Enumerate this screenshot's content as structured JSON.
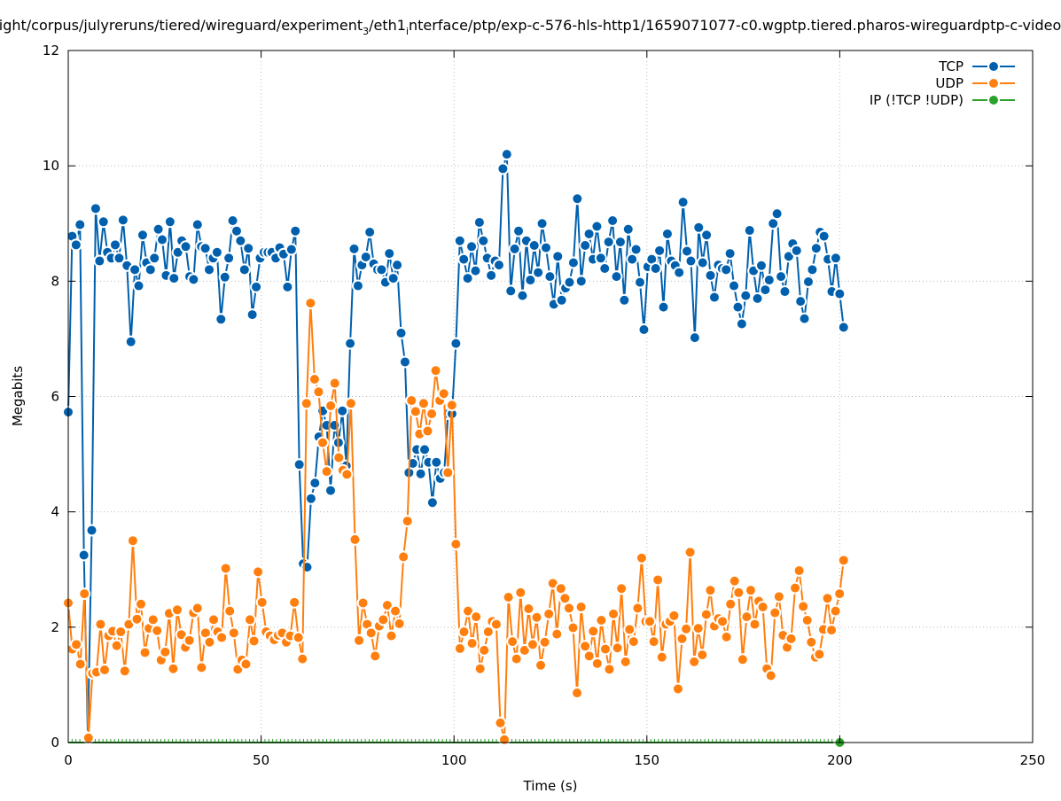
{
  "chart_data": {
    "type": "line",
    "title_parts": [
      "ight/corpus/julyreruns/tiered/wireguard/experiment",
      "3",
      "/eth1",
      "i",
      "nterface/ptp/exp-c-576-hls-http1/1659071077-c0.wgptp.tiered.pharos-wireguardptp-c-video"
    ],
    "xlabel": "Time (s)",
    "ylabel": "Megabits",
    "xlim": [
      0,
      250
    ],
    "ylim": [
      0,
      12
    ],
    "xticks": [
      "0",
      "50",
      "100",
      "150",
      "200",
      "250"
    ],
    "yticks": [
      "0",
      "2",
      "4",
      "6",
      "8",
      "10",
      "12"
    ],
    "grid": true,
    "legend_position": "top-right",
    "x_range_of_samples": [
      0,
      201
    ],
    "series": [
      {
        "name": "TCP",
        "color": "#0060ad",
        "values": [
          5.73,
          8.78,
          8.63,
          8.98,
          3.25,
          0.1,
          3.68,
          9.26,
          8.35,
          9.03,
          8.5,
          8.4,
          8.63,
          8.4,
          9.06,
          8.27,
          6.95,
          8.2,
          7.92,
          8.8,
          8.32,
          8.2,
          8.4,
          8.9,
          8.72,
          8.1,
          9.03,
          8.05,
          8.5,
          8.7,
          8.6,
          8.08,
          8.03,
          8.98,
          8.6,
          8.57,
          8.2,
          8.4,
          8.5,
          7.34,
          8.07,
          8.4,
          9.05,
          8.87,
          8.7,
          8.2,
          8.57,
          7.42,
          7.9,
          8.4,
          8.5,
          8.5,
          8.5,
          8.4,
          8.58,
          8.47,
          7.9,
          8.55,
          8.87,
          4.82,
          3.1,
          3.04,
          4.23,
          4.5,
          5.3,
          5.75,
          5.5,
          4.37,
          5.5,
          5.2,
          5.75,
          4.8,
          6.92,
          8.56,
          7.92,
          8.28,
          8.42,
          8.85,
          8.3,
          8.2,
          8.2,
          7.98,
          8.48,
          8.05,
          8.28,
          7.1,
          6.6,
          4.68,
          4.84,
          5.08,
          4.66,
          5.08,
          4.86,
          4.16,
          4.86,
          4.58,
          4.68,
          5.7,
          5.7,
          6.92,
          8.7,
          8.38,
          8.05,
          8.6,
          8.18,
          9.02,
          8.7,
          8.4,
          8.1,
          8.35,
          8.28,
          9.95,
          10.2,
          7.83,
          8.56,
          8.87,
          7.75,
          8.7,
          8.02,
          8.62,
          8.15,
          9.0,
          8.58,
          8.08,
          7.6,
          8.43,
          7.67,
          7.88,
          7.98,
          8.32,
          9.43,
          8.0,
          8.62,
          8.82,
          8.38,
          8.95,
          8.4,
          8.22,
          8.68,
          9.05,
          8.08,
          8.68,
          7.67,
          8.9,
          8.38,
          8.55,
          7.98,
          7.16,
          8.25,
          8.38,
          8.22,
          8.53,
          7.55,
          8.82,
          8.35,
          8.27,
          8.15,
          9.37,
          8.52,
          8.35,
          7.02,
          8.93,
          8.32,
          8.8,
          8.1,
          7.72,
          8.28,
          8.22,
          8.2,
          8.48,
          7.92,
          7.55,
          7.26,
          7.75,
          8.88,
          8.18,
          7.7,
          8.27,
          7.85,
          8.02,
          9.0,
          9.17,
          8.08,
          7.82,
          8.43,
          8.65,
          8.53,
          7.65,
          7.35,
          7.99,
          8.2,
          8.57,
          8.85,
          8.78,
          8.38,
          7.82,
          8.4,
          7.78,
          7.2
        ]
      },
      {
        "name": "UDP",
        "color": "#ff7f0e",
        "values": [
          2.42,
          1.62,
          1.7,
          1.36,
          2.58,
          0.08,
          1.2,
          1.22,
          2.05,
          1.26,
          1.85,
          1.93,
          1.68,
          1.92,
          1.24,
          2.05,
          3.5,
          2.14,
          2.4,
          1.56,
          1.98,
          2.13,
          1.94,
          1.43,
          1.57,
          2.24,
          1.28,
          2.3,
          1.87,
          1.65,
          1.77,
          2.25,
          2.33,
          1.3,
          1.9,
          1.74,
          2.13,
          1.92,
          1.82,
          3.02,
          2.28,
          1.9,
          1.27,
          1.43,
          1.36,
          2.13,
          1.76,
          2.96,
          2.43,
          1.92,
          1.85,
          1.78,
          1.86,
          1.9,
          1.74,
          1.85,
          2.43,
          1.82,
          1.45,
          5.88,
          7.62,
          6.3,
          6.08,
          5.2,
          4.7,
          5.84,
          6.23,
          4.94,
          4.72,
          4.65,
          5.88,
          3.52,
          1.77,
          2.42,
          2.05,
          1.9,
          1.5,
          2.02,
          2.13,
          2.38,
          1.85,
          2.28,
          2.06,
          3.22,
          3.84,
          5.93,
          5.74,
          5.35,
          5.88,
          5.4,
          5.7,
          6.45,
          5.93,
          6.05,
          4.68,
          5.85,
          3.44,
          1.63,
          1.92,
          2.28,
          1.72,
          2.18,
          1.28,
          1.6,
          1.92,
          2.1,
          2.05,
          0.34,
          0.05,
          2.52,
          1.75,
          1.45,
          2.6,
          1.6,
          2.32,
          1.7,
          2.17,
          1.34,
          1.74,
          2.23,
          2.76,
          1.88,
          2.67,
          2.5,
          2.33,
          1.99,
          0.86,
          2.35,
          1.67,
          1.5,
          1.93,
          1.37,
          2.12,
          1.62,
          1.27,
          2.23,
          1.64,
          2.67,
          1.4,
          1.96,
          1.75,
          2.33,
          3.2,
          2.1,
          2.1,
          1.75,
          2.82,
          1.48,
          2.05,
          2.1,
          2.2,
          0.93,
          1.8,
          1.97,
          3.3,
          1.4,
          1.98,
          1.52,
          2.22,
          2.64,
          2.02,
          2.15,
          2.1,
          1.83,
          2.4,
          2.8,
          2.6,
          1.44,
          2.18,
          2.64,
          2.05,
          2.45,
          2.35,
          1.28,
          1.16,
          2.25,
          2.53,
          1.86,
          1.65,
          1.8,
          2.68,
          2.98,
          2.36,
          2.12,
          1.74,
          1.48,
          1.53,
          1.96,
          2.5,
          1.95,
          2.28,
          2.58,
          3.16
        ]
      },
      {
        "name": "IP (!TCP  !UDP)",
        "color": "#2ca02c",
        "values_note_zero": true,
        "x": [
          0,
          200
        ],
        "values": [
          0,
          0
        ]
      }
    ]
  }
}
